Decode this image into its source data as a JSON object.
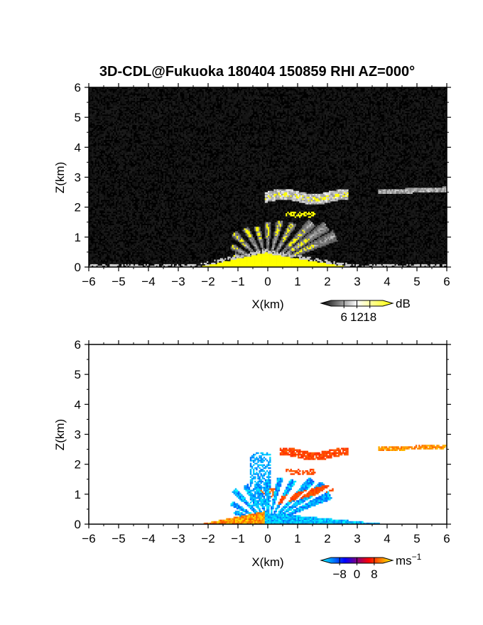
{
  "chart_data": [
    {
      "type": "heatmap",
      "panel": "top",
      "title": "3D-CDL@Fukuoka 180404 150859 RHI AZ=000°",
      "xlabel": "X(km)",
      "ylabel": "Z(km)",
      "xlim": [
        -6,
        6
      ],
      "ylim": [
        0,
        6
      ],
      "x_ticks": [
        -6,
        -5,
        -4,
        -3,
        -2,
        -1,
        0,
        1,
        2,
        3,
        4,
        5,
        6
      ],
      "y_ticks": [
        0,
        1,
        2,
        3,
        4,
        5,
        6
      ],
      "colorbar": {
        "unit": "dB",
        "ticks": [
          6,
          12,
          18
        ],
        "colors": [
          "#000000",
          "#ffffff",
          "#ffff00"
        ]
      },
      "features": [
        {
          "name": "near-ground echo",
          "x_range": [
            -2.3,
            2.6
          ],
          "z_range": [
            0,
            0.5
          ],
          "value": 18
        },
        {
          "name": "radial fan",
          "x_range": [
            -1.2,
            2.4
          ],
          "z_range": [
            0.3,
            1.6
          ],
          "value": 12
        },
        {
          "name": "aerosol layer",
          "x_range": [
            -0.1,
            2.7
          ],
          "z_range": [
            2.1,
            2.6
          ],
          "value": 15
        },
        {
          "name": "distant layer",
          "x_range": [
            3.7,
            6.0
          ],
          "z_range": [
            2.4,
            2.7
          ],
          "value": 10
        }
      ]
    },
    {
      "type": "heatmap",
      "panel": "bottom",
      "xlabel": "X(km)",
      "ylabel": "Z(km)",
      "xlim": [
        -6,
        6
      ],
      "ylim": [
        0,
        6
      ],
      "x_ticks": [
        -6,
        -5,
        -4,
        -3,
        -2,
        -1,
        0,
        1,
        2,
        3,
        4,
        5,
        6
      ],
      "y_ticks": [
        0,
        1,
        2,
        3,
        4,
        5,
        6
      ],
      "colorbar": {
        "unit": "ms",
        "unit_exp": "−1",
        "ticks": [
          -8,
          0,
          8
        ],
        "tick_labels": [
          "−8",
          "0",
          "8"
        ],
        "colors": [
          "#00ffff",
          "#0000ff",
          "#ff0000",
          "#ffff00"
        ]
      },
      "features": [
        {
          "name": "approaching flow",
          "x_range": [
            -1.2,
            0.4
          ],
          "z_range": [
            0,
            2.4
          ],
          "value": -7
        },
        {
          "name": "receding near-ground",
          "x_range": [
            -2.3,
            0
          ],
          "z_range": [
            0,
            0.4
          ],
          "value": 6
        },
        {
          "name": "receding upper layer",
          "x_range": [
            0.4,
            2.7
          ],
          "z_range": [
            2.1,
            2.6
          ],
          "value": 4
        },
        {
          "name": "distant layer",
          "x_range": [
            3.7,
            6.0
          ],
          "z_range": [
            2.4,
            2.7
          ],
          "value": 6
        },
        {
          "name": "outflow",
          "x_range": [
            0.2,
            4.0
          ],
          "z_range": [
            0,
            0.4
          ],
          "value": -6
        }
      ]
    }
  ]
}
